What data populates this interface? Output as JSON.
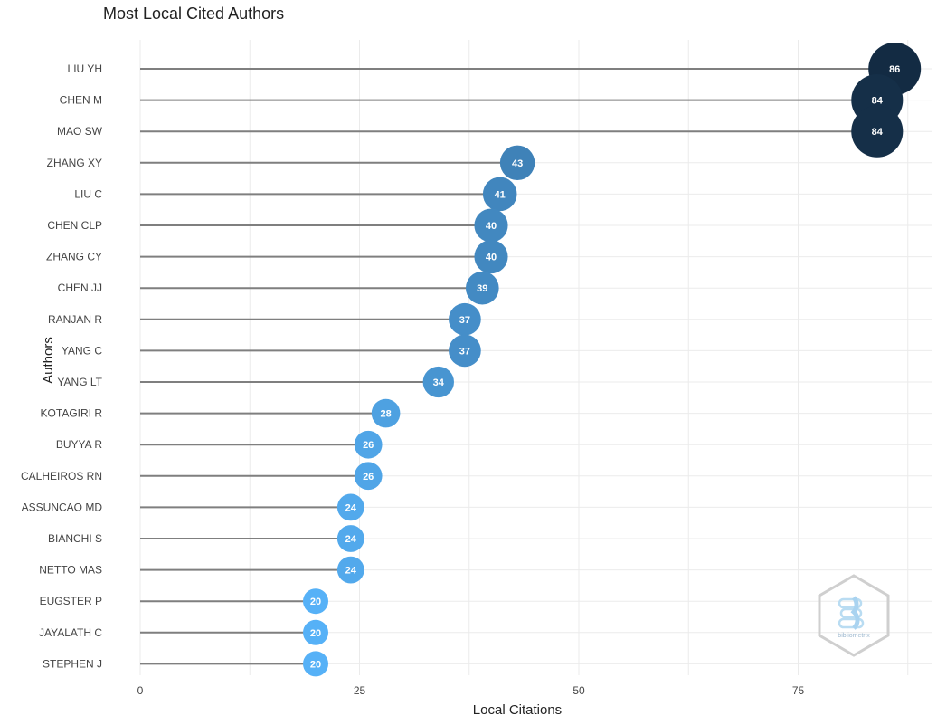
{
  "chart_data": {
    "type": "scatter",
    "title": "Most Local Cited Authors",
    "xlabel": "Local Citations",
    "ylabel": "Authors",
    "xlim": [
      0,
      90
    ],
    "x_ticks": [
      0,
      25,
      50,
      75
    ],
    "grid": true,
    "categories": [
      "LIU YH",
      "CHEN M",
      "MAO SW",
      "ZHANG XY",
      "LIU C",
      "CHEN CLP",
      "ZHANG CY",
      "CHEN JJ",
      "RANJAN R",
      "YANG C",
      "YANG LT",
      "KOTAGIRI R",
      "BUYYA R",
      "CALHEIROS RN",
      "ASSUNCAO MD",
      "BIANCHI S",
      "NETTO MAS",
      "EUGSTER P",
      "JAYALATH C",
      "STEPHEN J"
    ],
    "values": [
      86,
      84,
      84,
      43,
      41,
      40,
      40,
      39,
      37,
      37,
      34,
      28,
      26,
      26,
      24,
      24,
      24,
      20,
      20,
      20
    ],
    "colors": {
      "low": "#56b1f7",
      "high": "#132b43",
      "stem": "#7f7f7f",
      "grid": "#ebebeb"
    }
  },
  "logo": {
    "text": "bibliometrix"
  }
}
